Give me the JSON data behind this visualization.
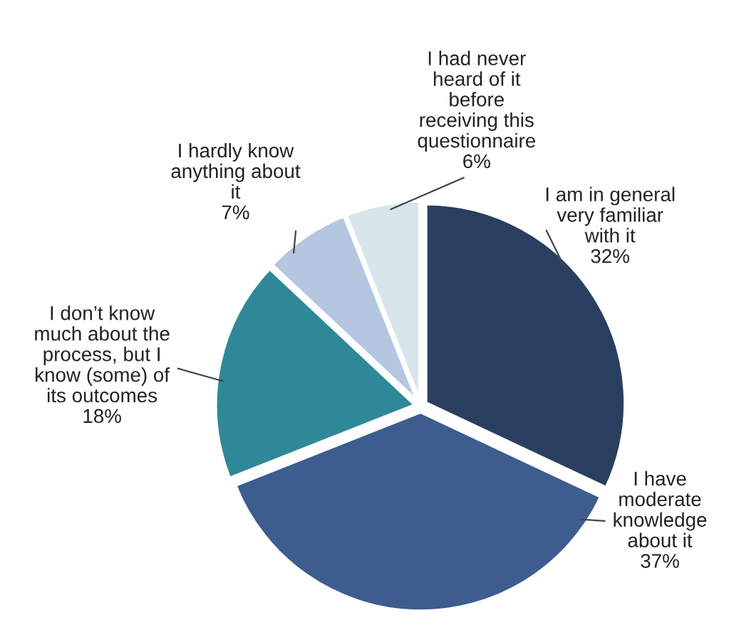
{
  "chart_data": {
    "type": "pie",
    "categories": [
      "I am in general\nvery familiar\nwith it",
      "I have\nmoderate\nknowledge\nabout it",
      "I don’t know\nmuch about the\nprocess, but I\nknow (some) of\nits outcomes",
      "I hardly know\nanything about\nit",
      "I had never\nheard of it\nbefore\nreceiving this\nquestionnaire"
    ],
    "values": [
      32,
      37,
      18,
      7,
      6
    ],
    "value_labels": [
      "32%",
      "37%",
      "18%",
      "7%",
      "6%"
    ],
    "colors": [
      "#2a3f5f",
      "#3d5d8f",
      "#2f8898",
      "#b4c6e0",
      "#d8e6ec"
    ],
    "legend": false
  }
}
